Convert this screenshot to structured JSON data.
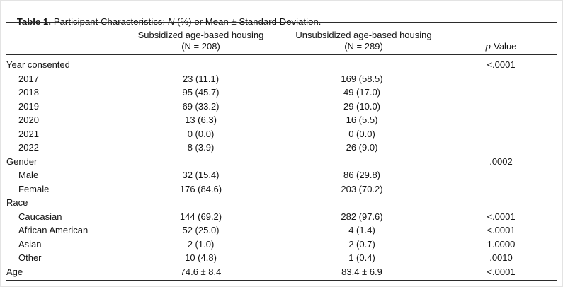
{
  "table": {
    "title": {
      "bold": "Table 1.",
      "mid": " Participant Characteristics: ",
      "n_italic": "N",
      "rest": " (%) or Mean ± Standard Deviation."
    },
    "header": {
      "col1_line1": "Subsidized age-based housing",
      "col1_line2": "(N = 208)",
      "col2_line1": "Unsubsidized age-based housing",
      "col2_line2": "(N = 289)",
      "p_italic": "p",
      "p_rest": "-Value"
    },
    "rows": [
      {
        "label": "Year consented",
        "indent": false,
        "c1": "",
        "c2": "",
        "p": "<.0001"
      },
      {
        "label": "2017",
        "indent": true,
        "c1": "23 (11.1)",
        "c2": "169 (58.5)",
        "p": ""
      },
      {
        "label": "2018",
        "indent": true,
        "c1": "95 (45.7)",
        "c2": "49 (17.0)",
        "p": ""
      },
      {
        "label": "2019",
        "indent": true,
        "c1": "69 (33.2)",
        "c2": "29 (10.0)",
        "p": ""
      },
      {
        "label": "2020",
        "indent": true,
        "c1": "13 (6.3)",
        "c2": "16 (5.5)",
        "p": ""
      },
      {
        "label": "2021",
        "indent": true,
        "c1": "0 (0.0)",
        "c2": "0 (0.0)",
        "p": ""
      },
      {
        "label": "2022",
        "indent": true,
        "c1": "8 (3.9)",
        "c2": "26 (9.0)",
        "p": ""
      },
      {
        "label": "Gender",
        "indent": false,
        "c1": "",
        "c2": "",
        "p": ".0002"
      },
      {
        "label": "Male",
        "indent": true,
        "c1": "32 (15.4)",
        "c2": "86 (29.8)",
        "p": ""
      },
      {
        "label": "Female",
        "indent": true,
        "c1": "176 (84.6)",
        "c2": "203 (70.2)",
        "p": ""
      },
      {
        "label": "Race",
        "indent": false,
        "c1": "",
        "c2": "",
        "p": ""
      },
      {
        "label": "Caucasian",
        "indent": true,
        "c1": "144 (69.2)",
        "c2": "282 (97.6)",
        "p": "<.0001"
      },
      {
        "label": "African American",
        "indent": true,
        "c1": "52 (25.0)",
        "c2": "4 (1.4)",
        "p": "<.0001"
      },
      {
        "label": "Asian",
        "indent": true,
        "c1": "2 (1.0)",
        "c2": "2 (0.7)",
        "p": "1.0000"
      },
      {
        "label": "Other",
        "indent": true,
        "c1": "10 (4.8)",
        "c2": "1 (0.4)",
        "p": ".0010"
      },
      {
        "label": "Age",
        "indent": false,
        "c1": "74.6 ± 8.4",
        "c2": "83.4 ± 6.9",
        "p": "<.0001"
      }
    ]
  }
}
